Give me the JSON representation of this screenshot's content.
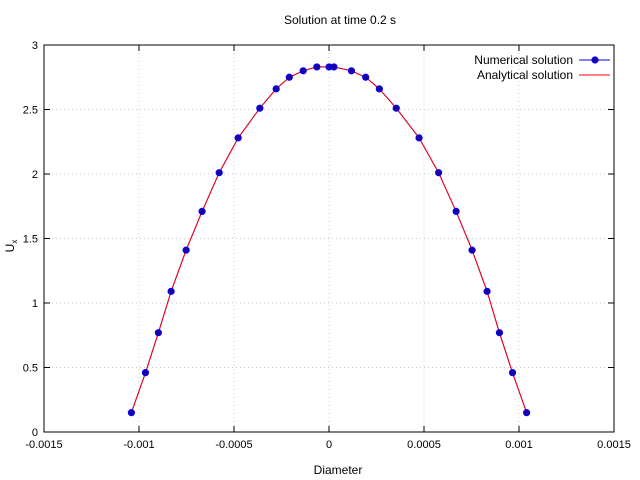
{
  "chart_data": {
    "type": "line",
    "title": "Solution at time 0.2 s",
    "xlabel": "Diameter",
    "ylabel_main": "U",
    "ylabel_sub": "x",
    "xlim": [
      -0.0015,
      0.0015
    ],
    "ylim": [
      0,
      3
    ],
    "xticks": [
      -0.0015,
      -0.001,
      -0.0005,
      0,
      0.0005,
      0.001,
      0.0015
    ],
    "xtick_labels": [
      "-0.0015",
      "-0.001",
      "-0.0005",
      "0",
      "0.0005",
      "0.001",
      "0.0015"
    ],
    "yticks": [
      0,
      0.5,
      1,
      1.5,
      2,
      2.5,
      3
    ],
    "ytick_labels": [
      "0",
      "0.5",
      "1",
      "1.5",
      "2",
      "2.5",
      "3"
    ],
    "grid": true,
    "legend_position": "top-right",
    "series": [
      {
        "name": "Numerical solution",
        "color": "#0000ff",
        "marker_color": "#1a00a8",
        "style": "line-points",
        "x": [
          -0.00104,
          -0.000966,
          -0.000898,
          -0.000831,
          -0.000752,
          -0.000668,
          -0.000578,
          -0.000478,
          -0.000364,
          -0.000278,
          -0.000209,
          -0.000136,
          -6.4e-05,
          3e-07,
          2.6e-05,
          0.000118,
          0.000193,
          0.000265,
          0.000354,
          0.000474,
          0.000577,
          0.000669,
          0.000753,
          0.000832,
          0.000897,
          0.000966,
          0.00104
        ],
        "y": [
          0.15,
          0.46,
          0.77,
          1.09,
          1.41,
          1.71,
          2.01,
          2.28,
          2.51,
          2.66,
          2.75,
          2.8,
          2.83,
          2.83,
          2.83,
          2.8,
          2.75,
          2.66,
          2.51,
          2.28,
          2.01,
          1.71,
          1.41,
          1.09,
          0.77,
          0.46,
          0.15
        ]
      },
      {
        "name": "Analytical solution",
        "color": "#ff0000",
        "style": "line",
        "x": [
          -0.00104,
          -0.000966,
          -0.000898,
          -0.000831,
          -0.000752,
          -0.000668,
          -0.000578,
          -0.000478,
          -0.000364,
          -0.000278,
          -0.000209,
          -0.000136,
          -6.4e-05,
          3e-07,
          2.6e-05,
          0.000118,
          0.000193,
          0.000265,
          0.000354,
          0.000474,
          0.000577,
          0.000669,
          0.000753,
          0.000832,
          0.000897,
          0.000966,
          0.00104
        ],
        "y": [
          0.15,
          0.46,
          0.77,
          1.09,
          1.41,
          1.71,
          2.01,
          2.28,
          2.51,
          2.66,
          2.75,
          2.8,
          2.83,
          2.83,
          2.83,
          2.8,
          2.75,
          2.66,
          2.51,
          2.28,
          2.01,
          1.71,
          1.41,
          1.09,
          0.77,
          0.46,
          0.15
        ]
      }
    ]
  }
}
